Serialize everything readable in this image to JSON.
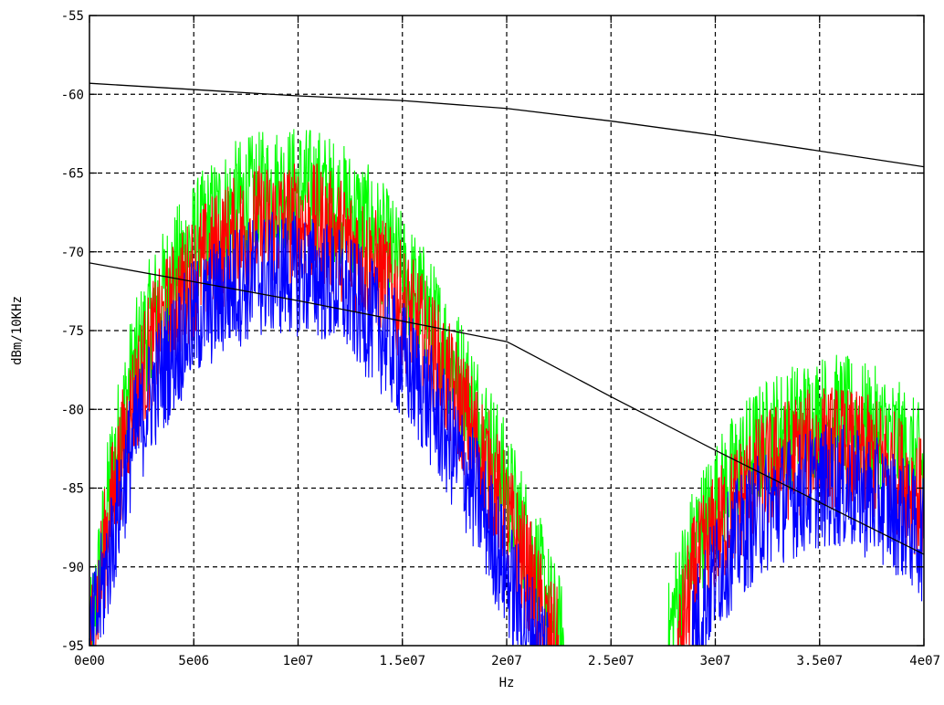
{
  "chart_data": {
    "type": "line",
    "xlabel": "Hz",
    "ylabel": "dBm/10KHz",
    "xlim": [
      0,
      40000000
    ],
    "ylim": [
      -95,
      -55
    ],
    "grid": true,
    "x_ticks": [
      {
        "value": 0,
        "label": "0e00"
      },
      {
        "value": 5000000,
        "label": "5e06"
      },
      {
        "value": 10000000,
        "label": "1e07"
      },
      {
        "value": 15000000,
        "label": "1.5e07"
      },
      {
        "value": 20000000,
        "label": "2e07"
      },
      {
        "value": 25000000,
        "label": "2.5e07"
      },
      {
        "value": 30000000,
        "label": "3e07"
      },
      {
        "value": 35000000,
        "label": "3.5e07"
      },
      {
        "value": 40000000,
        "label": "4e07"
      }
    ],
    "y_ticks": [
      {
        "value": -55,
        "label": "-55"
      },
      {
        "value": -60,
        "label": "-60"
      },
      {
        "value": -65,
        "label": "-65"
      },
      {
        "value": -70,
        "label": "-70"
      },
      {
        "value": -75,
        "label": "-75"
      },
      {
        "value": -80,
        "label": "-80"
      },
      {
        "value": -85,
        "label": "-85"
      },
      {
        "value": -90,
        "label": "-90"
      },
      {
        "value": -95,
        "label": "-95"
      }
    ],
    "series": [
      {
        "color": "#00ff00",
        "style": "noisy-spectrum",
        "noise_db": 4,
        "x": [
          0,
          1000000,
          2000000,
          3000000,
          4000000,
          5000000,
          6000000,
          7000000,
          8000000,
          9000000,
          10000000,
          11000000,
          12000000,
          13000000,
          14000000,
          15000000,
          16000000,
          17000000,
          18000000,
          19000000,
          20000000,
          21000000,
          22000000,
          22800000,
          null,
          27700000,
          28000000,
          29000000,
          30000000,
          31000000,
          32000000,
          33000000,
          34000000,
          35000000,
          36000000,
          37000000,
          38000000,
          39000000,
          40000000
        ],
        "y": [
          -95,
          -84,
          -77.5,
          -73.5,
          -71,
          -69,
          -67.5,
          -66.5,
          -66,
          -65.5,
          -65.5,
          -65.7,
          -66.5,
          -67.5,
          -69,
          -71,
          -73,
          -75.5,
          -78,
          -81,
          -84.5,
          -88,
          -92,
          -95,
          null,
          -95,
          -92.5,
          -88,
          -85.5,
          -83.5,
          -82,
          -81,
          -80.5,
          -80,
          -80,
          -80.5,
          -81,
          -82,
          -83.5
        ]
      },
      {
        "color": "#ff0000",
        "style": "noisy-spectrum",
        "noise_db": 4,
        "x": [
          0,
          1000000,
          2000000,
          3000000,
          4000000,
          5000000,
          6000000,
          7000000,
          8000000,
          9000000,
          10000000,
          11000000,
          12000000,
          13000000,
          14000000,
          15000000,
          16000000,
          17000000,
          18000000,
          19000000,
          20000000,
          21000000,
          22000000,
          22500000,
          null,
          28200000,
          29000000,
          30000000,
          31000000,
          32000000,
          33000000,
          34000000,
          35000000,
          36000000,
          37000000,
          38000000,
          39000000,
          40000000
        ],
        "y": [
          -95,
          -86,
          -79.5,
          -75.5,
          -73,
          -71,
          -69.7,
          -68.7,
          -68,
          -67.8,
          -67.8,
          -68,
          -68.7,
          -69.8,
          -71.2,
          -73,
          -75,
          -77.5,
          -80,
          -83,
          -86.5,
          -90,
          -94,
          -95,
          null,
          -95,
          -90,
          -87.5,
          -85.5,
          -84,
          -83,
          -82.5,
          -82,
          -82,
          -82.5,
          -83,
          -84,
          -85.5
        ]
      },
      {
        "color": "#0000ff",
        "style": "noisy-spectrum",
        "noise_db": 4,
        "x": [
          0,
          1000000,
          2000000,
          3000000,
          4000000,
          5000000,
          6000000,
          7000000,
          8000000,
          9000000,
          10000000,
          11000000,
          12000000,
          13000000,
          14000000,
          15000000,
          16000000,
          17000000,
          18000000,
          19000000,
          20000000,
          21000000,
          22000000,
          null,
          28700000,
          29000000,
          30000000,
          31000000,
          32000000,
          33000000,
          34000000,
          35000000,
          36000000,
          37000000,
          38000000,
          39000000,
          40000000
        ],
        "y": [
          -95,
          -88.5,
          -82,
          -78.5,
          -76,
          -74,
          -72.8,
          -71.8,
          -71.2,
          -71,
          -71,
          -71.3,
          -72,
          -73.2,
          -74.7,
          -76.5,
          -78.5,
          -81,
          -83.5,
          -86.5,
          -90,
          -93.5,
          -95,
          null,
          -95,
          -93.5,
          -90,
          -88,
          -86.5,
          -85.5,
          -85,
          -84.5,
          -84.5,
          -85,
          -85.5,
          -86.5,
          -88
        ]
      },
      {
        "color": "#000000",
        "style": "line",
        "x": [
          0,
          5000000,
          10000000,
          15000000,
          20000000,
          25000000,
          30000000,
          35000000,
          40000000
        ],
        "y": [
          -59.3,
          -59.7,
          -60.1,
          -60.4,
          -60.9,
          -61.7,
          -62.6,
          -63.6,
          -64.6
        ]
      },
      {
        "color": "#000000",
        "style": "line",
        "x": [
          0,
          5000000,
          10000000,
          15000000,
          20000000,
          20300000,
          25000000,
          30000000,
          35000000,
          40000000
        ],
        "y": [
          -70.7,
          -71.9,
          -73.1,
          -74.4,
          -75.7,
          -75.9,
          -79.2,
          -82.6,
          -85.9,
          -89.2
        ]
      }
    ]
  }
}
